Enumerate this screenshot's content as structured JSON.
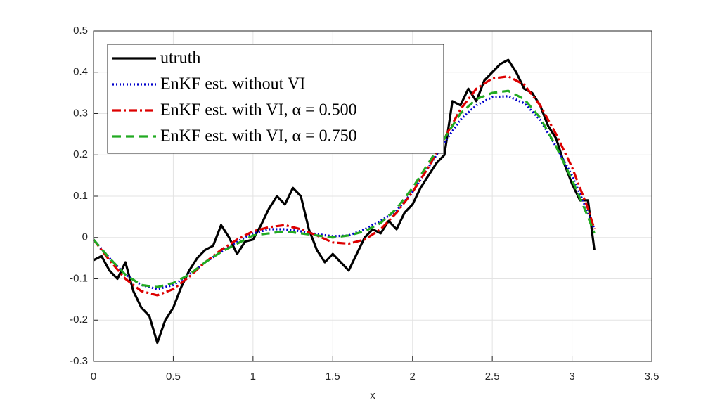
{
  "chart_data": {
    "type": "line",
    "xlabel": "x",
    "xlim": [
      0,
      3.5
    ],
    "xticks": [
      0,
      0.5,
      1,
      1.5,
      2,
      2.5,
      3,
      3.5
    ],
    "ylim": [
      -0.3,
      0.5
    ],
    "yticks": [
      -0.3,
      -0.2,
      -0.1,
      0,
      0.1,
      0.2,
      0.3,
      0.4,
      0.5
    ],
    "grid": true,
    "legend_location": "northwest",
    "series": [
      {
        "name": "utruth",
        "color": "#000000",
        "linestyle": "solid",
        "x": [
          0,
          0.05,
          0.1,
          0.15,
          0.2,
          0.25,
          0.3,
          0.35,
          0.4,
          0.45,
          0.5,
          0.55,
          0.6,
          0.65,
          0.7,
          0.75,
          0.8,
          0.85,
          0.9,
          0.95,
          1.0,
          1.05,
          1.1,
          1.15,
          1.2,
          1.25,
          1.3,
          1.35,
          1.4,
          1.45,
          1.5,
          1.55,
          1.6,
          1.65,
          1.7,
          1.75,
          1.8,
          1.85,
          1.9,
          1.95,
          2.0,
          2.05,
          2.1,
          2.15,
          2.2,
          2.25,
          2.3,
          2.35,
          2.4,
          2.45,
          2.5,
          2.55,
          2.6,
          2.65,
          2.7,
          2.75,
          2.8,
          2.85,
          2.9,
          2.95,
          3.0,
          3.05,
          3.1,
          3.14
        ],
        "values": [
          -0.055,
          -0.045,
          -0.08,
          -0.1,
          -0.06,
          -0.13,
          -0.17,
          -0.19,
          -0.255,
          -0.2,
          -0.17,
          -0.12,
          -0.08,
          -0.05,
          -0.03,
          -0.02,
          0.03,
          0.0,
          -0.04,
          -0.01,
          -0.005,
          0.03,
          0.07,
          0.1,
          0.08,
          0.12,
          0.1,
          0.02,
          -0.03,
          -0.06,
          -0.04,
          -0.06,
          -0.08,
          -0.04,
          0.0,
          0.02,
          0.01,
          0.04,
          0.02,
          0.06,
          0.08,
          0.12,
          0.15,
          0.18,
          0.2,
          0.33,
          0.32,
          0.36,
          0.33,
          0.38,
          0.4,
          0.42,
          0.43,
          0.4,
          0.36,
          0.35,
          0.32,
          0.27,
          0.24,
          0.18,
          0.13,
          0.09,
          0.09,
          -0.03
        ]
      },
      {
        "name": "EnKF est. without VI",
        "color": "#0000cc",
        "linestyle": "dotted",
        "x": [
          0,
          0.1,
          0.2,
          0.3,
          0.4,
          0.5,
          0.6,
          0.7,
          0.8,
          0.9,
          1.0,
          1.1,
          1.2,
          1.3,
          1.4,
          1.5,
          1.6,
          1.7,
          1.8,
          1.9,
          2.0,
          2.1,
          2.2,
          2.3,
          2.4,
          2.5,
          2.6,
          2.7,
          2.8,
          2.9,
          3.0,
          3.1,
          3.14
        ],
        "values": [
          -0.005,
          -0.05,
          -0.09,
          -0.115,
          -0.125,
          -0.115,
          -0.09,
          -0.06,
          -0.035,
          -0.01,
          0.01,
          0.02,
          0.02,
          0.015,
          0.008,
          0.003,
          0.005,
          0.02,
          0.04,
          0.065,
          0.11,
          0.17,
          0.23,
          0.285,
          0.32,
          0.34,
          0.342,
          0.325,
          0.285,
          0.22,
          0.15,
          0.06,
          0.02
        ]
      },
      {
        "name": "EnKF est. with VI, α = 0.500",
        "color": "#dd0000",
        "linestyle": "dashdot",
        "x": [
          0,
          0.1,
          0.2,
          0.3,
          0.4,
          0.5,
          0.6,
          0.7,
          0.8,
          0.9,
          1.0,
          1.1,
          1.2,
          1.3,
          1.4,
          1.5,
          1.6,
          1.7,
          1.8,
          1.9,
          2.0,
          2.1,
          2.2,
          2.3,
          2.4,
          2.5,
          2.6,
          2.7,
          2.8,
          2.9,
          3.0,
          3.1,
          3.14
        ],
        "values": [
          -0.005,
          -0.055,
          -0.1,
          -0.13,
          -0.14,
          -0.125,
          -0.095,
          -0.06,
          -0.03,
          -0.005,
          0.015,
          0.025,
          0.03,
          0.02,
          0.005,
          -0.012,
          -0.015,
          -0.005,
          0.02,
          0.06,
          0.11,
          0.17,
          0.24,
          0.31,
          0.36,
          0.385,
          0.39,
          0.37,
          0.32,
          0.25,
          0.17,
          0.07,
          0.02
        ]
      },
      {
        "name": "EnKF est. with VI, α = 0.750",
        "color": "#22aa22",
        "linestyle": "dashed",
        "x": [
          0,
          0.1,
          0.2,
          0.3,
          0.4,
          0.5,
          0.6,
          0.7,
          0.8,
          0.9,
          1.0,
          1.1,
          1.2,
          1.3,
          1.4,
          1.5,
          1.6,
          1.7,
          1.8,
          1.9,
          2.0,
          2.1,
          2.2,
          2.3,
          2.4,
          2.5,
          2.6,
          2.7,
          2.8,
          2.9,
          3.0,
          3.1,
          3.14
        ],
        "values": [
          -0.005,
          -0.05,
          -0.09,
          -0.115,
          -0.12,
          -0.11,
          -0.09,
          -0.06,
          -0.035,
          -0.015,
          0.005,
          0.01,
          0.015,
          0.01,
          0.005,
          0.0,
          0.005,
          0.015,
          0.035,
          0.07,
          0.12,
          0.18,
          0.24,
          0.3,
          0.335,
          0.35,
          0.355,
          0.335,
          0.29,
          0.22,
          0.14,
          0.05,
          0.01
        ]
      }
    ]
  }
}
